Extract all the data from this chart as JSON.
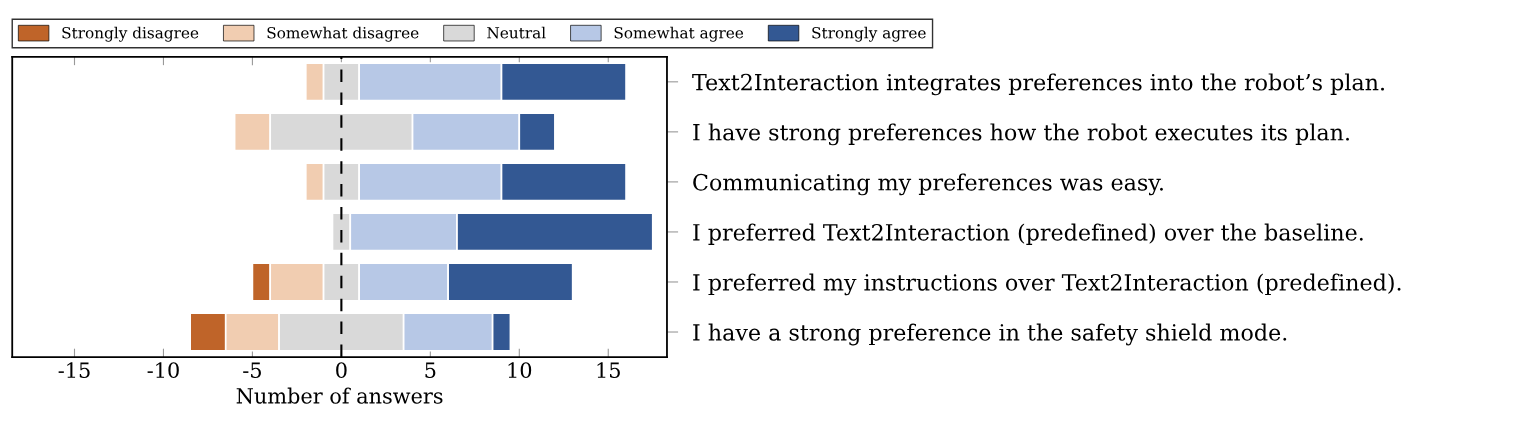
{
  "chart_data": {
    "type": "bar",
    "orientation": "horizontal",
    "categories": [
      "Text2Interaction integrates preferences into the robot’s plan.",
      "I have strong preferences how the robot executes its plan.",
      "Communicating my preferences was easy.",
      "I preferred Text2Interaction (predefined) over the baseline.",
      "I preferred my instructions over Text2Interaction (predefined).",
      "I have a strong preference in the safety shield mode."
    ],
    "series": [
      {
        "name": "Strongly disagree",
        "color": "#bf6429",
        "base": [
          null,
          null,
          null,
          null,
          -5,
          -8.5
        ],
        "values": [
          null,
          null,
          null,
          null,
          1,
          2
        ]
      },
      {
        "name": "Somewhat disagree",
        "color": "#f1cdb1",
        "base": [
          -2,
          -6,
          -2,
          null,
          -4,
          -6.5
        ],
        "values": [
          1,
          2,
          1,
          null,
          3,
          3
        ]
      },
      {
        "name": "Neutral",
        "color": "#d9d9d9",
        "base": [
          -1,
          -4,
          -1,
          -0.5,
          -1,
          -3.5
        ],
        "values": [
          2,
          8,
          2,
          1,
          2,
          7
        ]
      },
      {
        "name": "Somewhat agree",
        "color": "#b7c8e6",
        "base": [
          1,
          4,
          1,
          0.5,
          1,
          3.5
        ],
        "values": [
          8,
          6,
          8,
          6,
          5,
          5
        ]
      },
      {
        "name": "Strongly agree",
        "color": "#335893",
        "base": [
          9,
          10,
          9,
          6.5,
          6,
          8.5
        ],
        "values": [
          7,
          2,
          7,
          11,
          7,
          1
        ]
      }
    ],
    "xlabel": "Number of answers",
    "xlim": [
      -18.5,
      18.3
    ],
    "xticks": [
      -15,
      -10,
      -5,
      0,
      5,
      10,
      15
    ],
    "ref_lines": [
      {
        "axis": "x",
        "value": 0,
        "color": "#000000",
        "line_style": "dashed"
      }
    ],
    "legend": "top",
    "grid": false
  }
}
